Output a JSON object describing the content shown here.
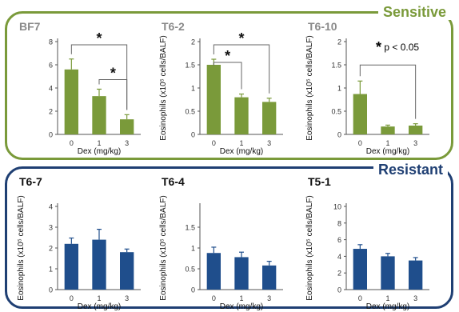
{
  "groups": {
    "sensitive": {
      "label": "Sensitive",
      "color": "#7a9a3a"
    },
    "resistant": {
      "label": "Resistant",
      "color": "#1f3f73"
    }
  },
  "significance_note": {
    "star": "*",
    "text": "p < 0.05"
  },
  "chart_data": [
    {
      "type": "bar",
      "group": "sensitive",
      "title": "BF7",
      "title_color": "#8a8a8a",
      "categories": [
        "0",
        "1",
        "3"
      ],
      "values": [
        5.6,
        3.3,
        1.3
      ],
      "errors": [
        0.9,
        0.6,
        0.4
      ],
      "xlabel": "Dex (mg/kg)",
      "ylabel": "",
      "ylim": [
        0,
        8
      ],
      "yticks": [
        "0",
        "2",
        "4",
        "6",
        "8"
      ],
      "bar_color": "#7a9a3a",
      "sig_brackets": [
        {
          "from": 0,
          "to": 2,
          "label": "*"
        },
        {
          "from": 1,
          "to": 2,
          "label": "*"
        }
      ]
    },
    {
      "type": "bar",
      "group": "sensitive",
      "title": "T6-2",
      "title_color": "#8a8a8a",
      "categories": [
        "0",
        "1",
        "3"
      ],
      "values": [
        1.5,
        0.8,
        0.7
      ],
      "errors": [
        0.12,
        0.07,
        0.08
      ],
      "xlabel": "Dex (mg/kg)",
      "ylabel": "Eosinophils (x10⁵ cells/BALF)",
      "ylim": [
        0,
        2
      ],
      "yticks": [
        "0",
        "0.5",
        "1",
        "1.5",
        "2"
      ],
      "bar_color": "#7a9a3a",
      "sig_brackets": [
        {
          "from": 0,
          "to": 2,
          "label": "*"
        },
        {
          "from": 0,
          "to": 1,
          "label": "*"
        }
      ]
    },
    {
      "type": "bar",
      "group": "sensitive",
      "title": "T6-10",
      "title_color": "#8a8a8a",
      "categories": [
        "0",
        "1",
        "3"
      ],
      "values": [
        0.87,
        0.17,
        0.19
      ],
      "errors": [
        0.28,
        0.03,
        0.04
      ],
      "xlabel": "Dex (mg/kg)",
      "ylabel": "Eosinophils (x10⁵ cells/BALF)",
      "ylim": [
        0,
        2
      ],
      "yticks": [
        "0",
        "0.5",
        "1",
        "1.5",
        "2"
      ],
      "bar_color": "#7a9a3a",
      "sig_brackets": [
        {
          "from": 0,
          "to": 2,
          "label": ""
        }
      ]
    },
    {
      "type": "bar",
      "group": "resistant",
      "title": "T6-7",
      "title_color": "#111111",
      "categories": [
        "0",
        "1",
        "3"
      ],
      "values": [
        2.2,
        2.4,
        1.8
      ],
      "errors": [
        0.28,
        0.5,
        0.15
      ],
      "xlabel": "Dex (mg/kg)",
      "ylabel": "Eosinophils (x10⁵ cells/BALF)",
      "ylim": [
        0,
        4
      ],
      "yticks": [
        "0",
        "1",
        "2",
        "3",
        "4"
      ],
      "bar_color": "#1f4e8c",
      "sig_brackets": []
    },
    {
      "type": "bar",
      "group": "resistant",
      "title": "T6-4",
      "title_color": "#111111",
      "categories": [
        "0",
        "1",
        "3"
      ],
      "values": [
        0.88,
        0.78,
        0.58
      ],
      "errors": [
        0.14,
        0.12,
        0.1
      ],
      "xlabel": "Dex (mg/kg)",
      "ylabel": "Eosinophils (x10⁵ cells/BALF)",
      "ylim": [
        0,
        2
      ],
      "yticks": [
        "0",
        "0.5",
        "1",
        "1.5"
      ],
      "bar_color": "#1f4e8c",
      "sig_brackets": []
    },
    {
      "type": "bar",
      "group": "resistant",
      "title": "T5-1",
      "title_color": "#111111",
      "categories": [
        "0",
        "1",
        "3"
      ],
      "values": [
        4.9,
        4.0,
        3.5
      ],
      "errors": [
        0.5,
        0.35,
        0.35
      ],
      "xlabel": "Dex (mg/kg)",
      "ylabel": "Eosinophils (x10⁵ cells/BALF)",
      "ylim": [
        0,
        10
      ],
      "yticks": [
        "0",
        "2",
        "4",
        "6",
        "8",
        "10"
      ],
      "bar_color": "#1f4e8c",
      "sig_brackets": []
    }
  ]
}
